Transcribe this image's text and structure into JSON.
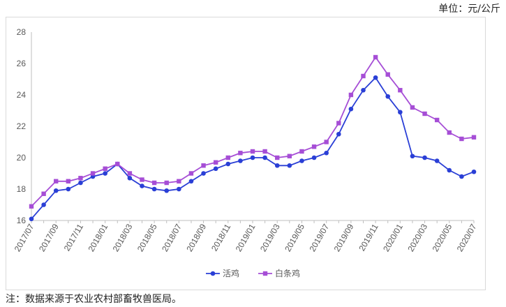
{
  "unit_label": "单位：元/公斤",
  "note": "注：数据来源于农业农村部畜牧兽医局。",
  "chart_data": {
    "type": "line",
    "title": "",
    "xlabel": "",
    "ylabel": "",
    "ylim": [
      16,
      28
    ],
    "yticks": [
      16,
      18,
      20,
      22,
      24,
      26,
      28
    ],
    "grid": false,
    "legend_position": "bottom",
    "categories": [
      "2017/07",
      "2017/08",
      "2017/09",
      "2017/10",
      "2017/11",
      "2017/12",
      "2018/01",
      "2018/02",
      "2018/03",
      "2018/04",
      "2018/05",
      "2018/06",
      "2018/07",
      "2018/08",
      "2018/09",
      "2018/10",
      "2018/11",
      "2018/12",
      "2019/01",
      "2019/02",
      "2019/03",
      "2019/04",
      "2019/05",
      "2019/06",
      "2019/07",
      "2019/08",
      "2019/09",
      "2019/10",
      "2019/11",
      "2019/12",
      "2020/01",
      "2020/02",
      "2020/03",
      "2020/04",
      "2020/05",
      "2020/06",
      "2020/07"
    ],
    "tick_labels": [
      "2017/07",
      "2017/09",
      "2017/11",
      "2018/01",
      "2018/03",
      "2018/05",
      "2018/07",
      "2018/09",
      "2018/11",
      "2019/01",
      "2019/03",
      "2019/05",
      "2019/07",
      "2019/09",
      "2019/11",
      "2020/01",
      "2020/03",
      "2020/05",
      "2020/07"
    ],
    "series": [
      {
        "name": "活鸡",
        "color": "#2a3fd6",
        "marker": "circle",
        "values": [
          16.1,
          17.0,
          17.9,
          18.0,
          18.4,
          18.8,
          19.0,
          19.6,
          18.7,
          18.2,
          18.0,
          17.9,
          18.0,
          18.5,
          19.0,
          19.3,
          19.6,
          19.8,
          20.0,
          20.0,
          19.5,
          19.5,
          19.8,
          20.0,
          20.3,
          21.5,
          23.1,
          24.3,
          25.1,
          23.9,
          22.9,
          20.1,
          20.0,
          19.8,
          19.2,
          18.8,
          19.1
        ]
      },
      {
        "name": "白条鸡",
        "color": "#a64ed6",
        "marker": "square",
        "values": [
          16.9,
          17.7,
          18.5,
          18.5,
          18.7,
          19.0,
          19.3,
          19.6,
          19.0,
          18.6,
          18.4,
          18.4,
          18.5,
          19.0,
          19.5,
          19.7,
          20.0,
          20.3,
          20.4,
          20.4,
          20.0,
          20.1,
          20.4,
          20.7,
          21.0,
          22.2,
          24.0,
          25.2,
          26.4,
          25.3,
          24.3,
          23.2,
          22.8,
          22.4,
          21.6,
          21.2,
          21.3
        ]
      }
    ]
  }
}
